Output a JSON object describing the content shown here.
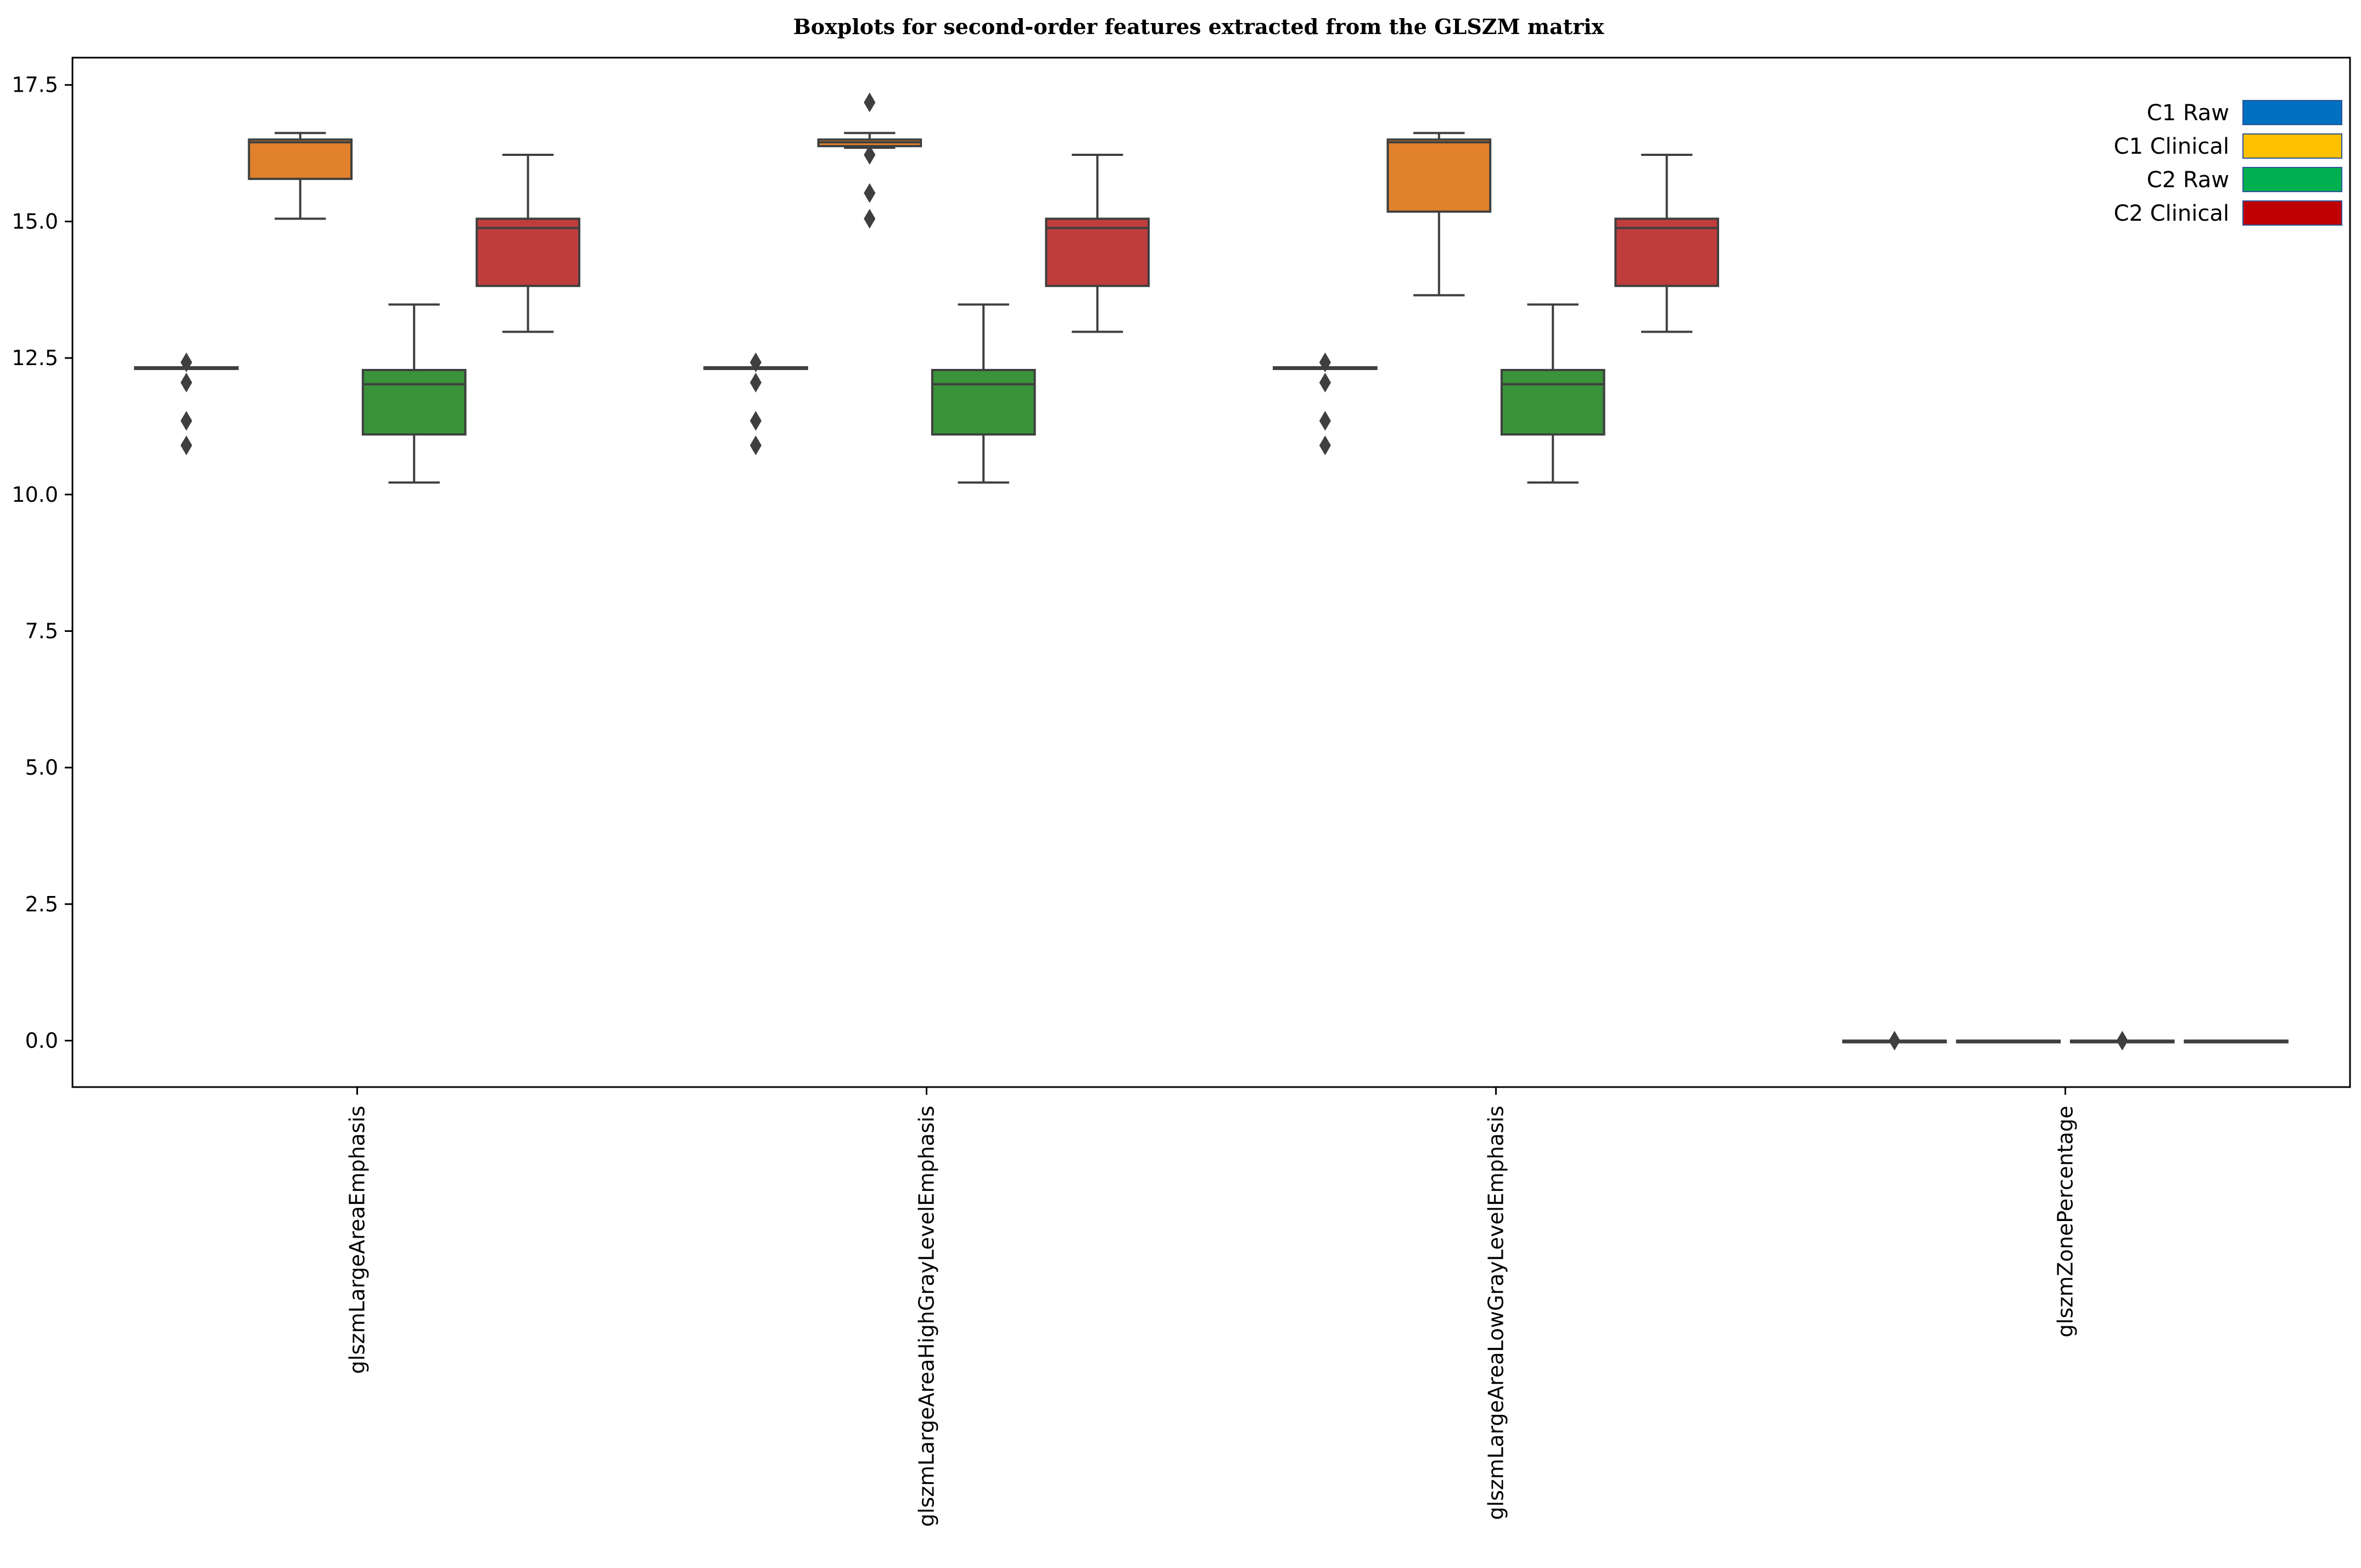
{
  "chart_data": {
    "type": "boxplot",
    "title": "Boxplots for second-order features extracted from the GLSZM matrix",
    "xlabel": "",
    "ylabel": "",
    "ylim": [
      -0.85,
      18.0
    ],
    "yticks": [
      0.0,
      2.5,
      5.0,
      7.5,
      10.0,
      12.5,
      15.0,
      17.5
    ],
    "ytick_labels": [
      "0.0",
      "2.5",
      "5.0",
      "7.5",
      "10.0",
      "12.5",
      "15.0",
      "17.5"
    ],
    "grid": false,
    "legend_position": "top-right",
    "categories": [
      "glszmLargeAreaEmphasis",
      "glszmLargeAreaHighGrayLevelEmphasis",
      "glszmLargeAreaLowGrayLevelEmphasis",
      "glszmZonePercentage"
    ],
    "series": [
      {
        "name": "C1 Raw",
        "legend_color": "#0070c0",
        "box_color": "#1f77b4",
        "boxes": [
          {
            "whislo": 12.3,
            "q1": 12.3,
            "med": 12.3,
            "q3": 12.33,
            "whishi": 12.33,
            "fliers": [
              12.42,
              12.05,
              11.35,
              10.9
            ]
          },
          {
            "whislo": 12.3,
            "q1": 12.3,
            "med": 12.3,
            "q3": 12.33,
            "whishi": 12.33,
            "fliers": [
              12.42,
              12.05,
              11.35,
              10.9
            ]
          },
          {
            "whislo": 12.3,
            "q1": 12.3,
            "med": 12.3,
            "q3": 12.33,
            "whishi": 12.33,
            "fliers": [
              12.42,
              12.05,
              11.35,
              10.9
            ]
          },
          {
            "whislo": 0.0,
            "q1": 0.0,
            "med": 0.0,
            "q3": 0.0,
            "whishi": 0.0,
            "fliers": [
              0.0
            ]
          }
        ]
      },
      {
        "name": "C1 Clinical",
        "legend_color": "#ffc000",
        "box_color": "#e1812c",
        "boxes": [
          {
            "whislo": 15.05,
            "q1": 15.78,
            "med": 16.45,
            "q3": 16.5,
            "whishi": 16.62,
            "fliers": []
          },
          {
            "whislo": 16.35,
            "q1": 16.38,
            "med": 16.45,
            "q3": 16.5,
            "whishi": 16.62,
            "fliers": [
              17.18,
              16.22,
              15.52,
              15.05
            ]
          },
          {
            "whislo": 13.65,
            "q1": 15.18,
            "med": 16.45,
            "q3": 16.5,
            "whishi": 16.62,
            "fliers": []
          },
          {
            "whislo": 0.0,
            "q1": 0.0,
            "med": 0.0,
            "q3": 0.0,
            "whishi": 0.0,
            "fliers": []
          }
        ]
      },
      {
        "name": "C2 Raw",
        "legend_color": "#00b050",
        "box_color": "#3a923a",
        "boxes": [
          {
            "whislo": 10.22,
            "q1": 11.1,
            "med": 12.02,
            "q3": 12.28,
            "whishi": 13.48,
            "fliers": []
          },
          {
            "whislo": 10.22,
            "q1": 11.1,
            "med": 12.02,
            "q3": 12.28,
            "whishi": 13.48,
            "fliers": []
          },
          {
            "whislo": 10.22,
            "q1": 11.1,
            "med": 12.02,
            "q3": 12.28,
            "whishi": 13.48,
            "fliers": []
          },
          {
            "whislo": 0.0,
            "q1": 0.0,
            "med": 0.0,
            "q3": 0.0,
            "whishi": 0.0,
            "fliers": [
              0.0
            ]
          }
        ]
      },
      {
        "name": "C2 Clinical",
        "legend_color": "#c00000",
        "box_color": "#c03d3e",
        "boxes": [
          {
            "whislo": 12.98,
            "q1": 13.82,
            "med": 14.88,
            "q3": 15.05,
            "whishi": 16.22,
            "fliers": []
          },
          {
            "whislo": 12.98,
            "q1": 13.82,
            "med": 14.88,
            "q3": 15.05,
            "whishi": 16.22,
            "fliers": []
          },
          {
            "whislo": 12.98,
            "q1": 13.82,
            "med": 14.88,
            "q3": 15.05,
            "whishi": 16.22,
            "fliers": []
          },
          {
            "whislo": 0.0,
            "q1": 0.0,
            "med": 0.0,
            "q3": 0.0,
            "whishi": 0.0,
            "fliers": []
          }
        ]
      }
    ]
  }
}
